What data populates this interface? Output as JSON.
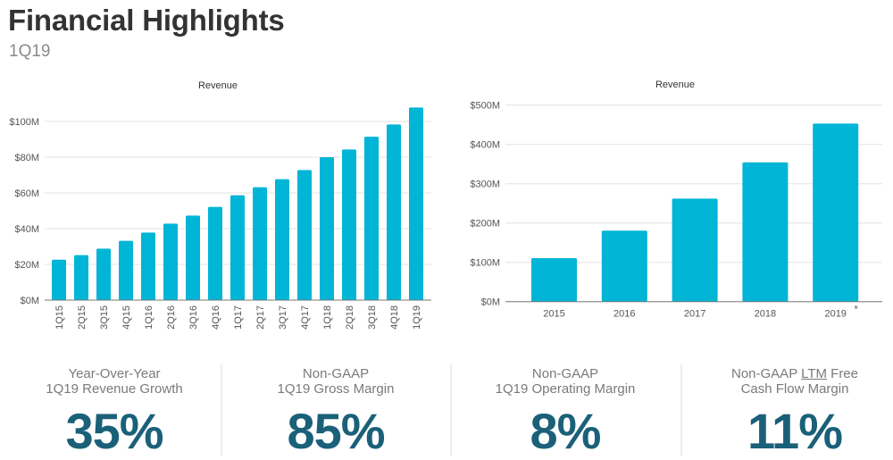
{
  "header": {
    "title": "Financial Highlights",
    "subtitle": "1Q19"
  },
  "colors": {
    "bar": "#00b5d6",
    "kpi_value": "#1b6079",
    "title": "#333333"
  },
  "chart_data": [
    {
      "type": "bar",
      "title": "Revenue",
      "xlabel": "",
      "ylabel": "",
      "categories": [
        "1Q15",
        "2Q15",
        "3Q15",
        "4Q15",
        "1Q16",
        "2Q16",
        "3Q16",
        "4Q16",
        "1Q17",
        "2Q17",
        "3Q17",
        "4Q17",
        "1Q18",
        "2Q18",
        "3Q18",
        "4Q18",
        "1Q19"
      ],
      "values": [
        22.6,
        25.2,
        28.8,
        33.2,
        37.8,
        42.8,
        47.3,
        52.2,
        58.7,
        63.2,
        67.7,
        72.8,
        80.0,
        84.3,
        91.5,
        98.3,
        107.8
      ],
      "units": "$M",
      "ylim": [
        0,
        100
      ],
      "yticks": [
        "$0M",
        "$20M",
        "$40M",
        "$60M",
        "$80M",
        "$100M"
      ],
      "ytick_values": [
        0,
        20,
        40,
        60,
        80,
        100
      ],
      "grid": true,
      "legend": "none"
    },
    {
      "type": "bar",
      "title": "Revenue",
      "xlabel": "",
      "ylabel": "",
      "categories": [
        "2015",
        "2016",
        "2017",
        "2018",
        "2019 *"
      ],
      "values": [
        110.7,
        180.5,
        262,
        354.5,
        453
      ],
      "units": "$M",
      "ylim": [
        0,
        500
      ],
      "yticks": [
        "$0M",
        "$100M",
        "$200M",
        "$300M",
        "$400M",
        "$500M"
      ],
      "ytick_values": [
        0,
        100,
        200,
        300,
        400,
        500
      ],
      "grid": true,
      "legend": "none"
    }
  ],
  "kpis": [
    {
      "label_line1": "Year-Over-Year",
      "label_line2": "1Q19 Revenue Growth",
      "value": "35%"
    },
    {
      "label_line1": "Non-GAAP",
      "label_line2": "1Q19 Gross Margin",
      "value": "85%"
    },
    {
      "label_line1": "Non-GAAP",
      "label_line2": "1Q19 Operating Margin",
      "value": "8%"
    },
    {
      "label_line1_pre": "Non-GAAP ",
      "label_line1_link": "LTM",
      "label_line1_post": " Free",
      "label_line2": "Cash Flow Margin",
      "value": "11%"
    }
  ]
}
